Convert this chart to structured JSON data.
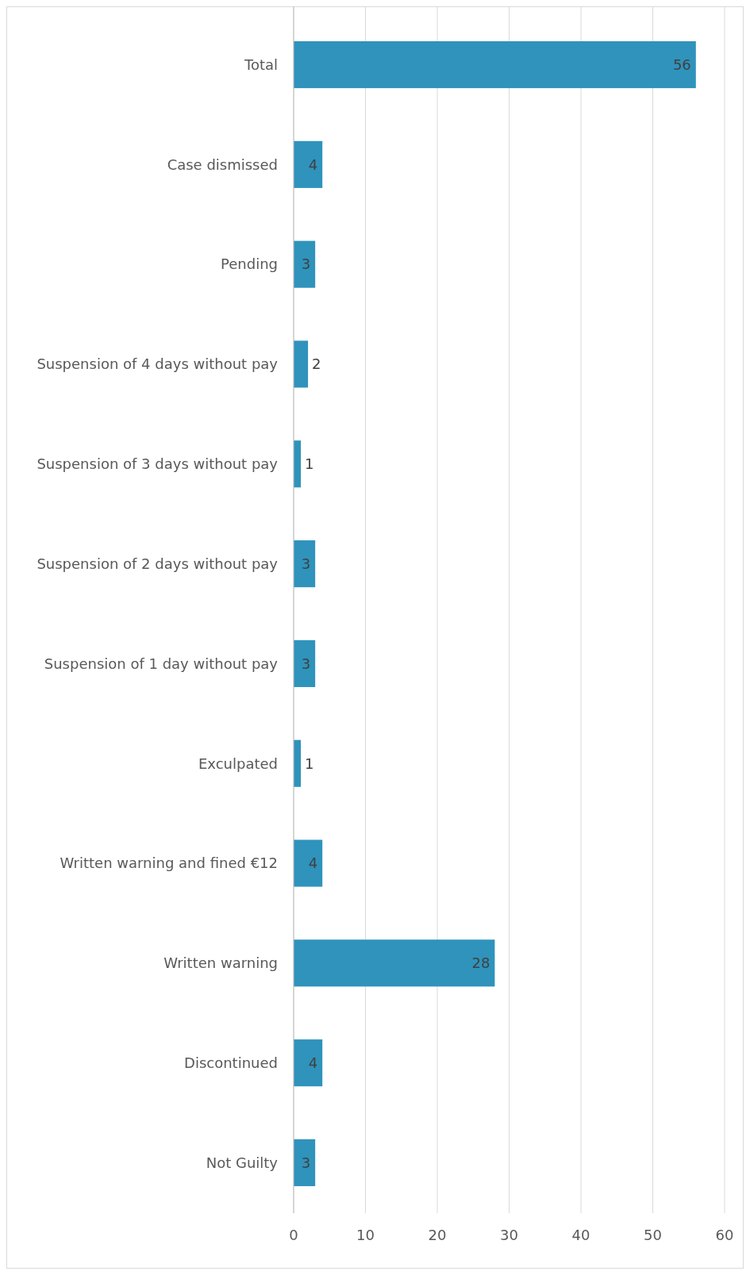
{
  "chart_data": {
    "type": "bar",
    "orientation": "horizontal",
    "categories": [
      "Total",
      "Case dismissed",
      "Pending",
      "Suspension of 4 days without pay",
      "Suspension of 3 days without pay",
      "Suspension of 2 days without pay",
      "Suspension of 1 day without pay",
      "Exculpated",
      "Written warning and fined €12",
      "Written warning",
      "Discontinued",
      "Not Guilty"
    ],
    "values": [
      56,
      4,
      3,
      2,
      1,
      3,
      3,
      1,
      4,
      28,
      4,
      3
    ],
    "color": "#2f93bc",
    "xlim": [
      0,
      60
    ],
    "xticks": [
      0,
      10,
      20,
      30,
      40,
      50,
      60
    ],
    "grid": "x",
    "data_labels": true
  }
}
